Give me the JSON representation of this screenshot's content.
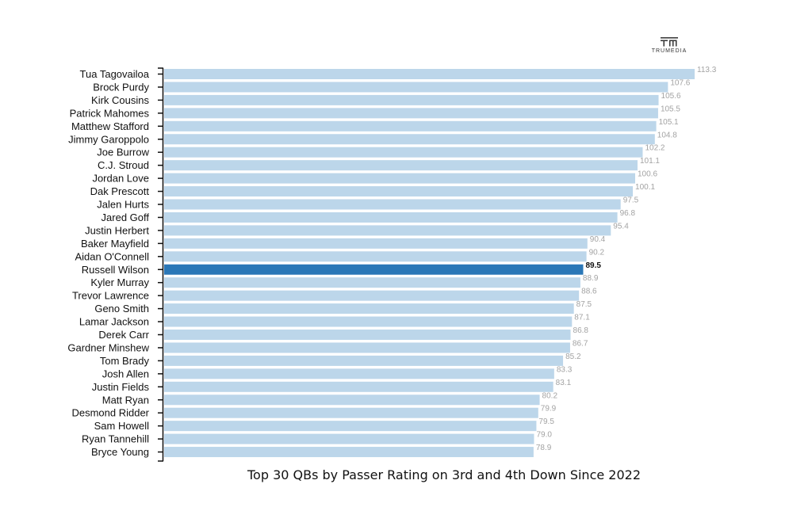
{
  "logo": {
    "text": "TRUMEDIA",
    "icon": "trumedia-logo-icon"
  },
  "colors": {
    "bar": "#bcd6ea",
    "highlight": "#2a77b7",
    "axis": "#111111"
  },
  "chart_data": {
    "type": "bar",
    "orientation": "horizontal",
    "title": "Top 30 QBs by Passer Rating on 3rd and 4th Down Since 2022",
    "highlight": "Russell Wilson",
    "categories": [
      "Tua Tagovailoa",
      "Brock Purdy",
      "Kirk Cousins",
      "Patrick Mahomes",
      "Matthew Stafford",
      "Jimmy Garoppolo",
      "Joe Burrow",
      "C.J. Stroud",
      "Jordan Love",
      "Dak Prescott",
      "Jalen Hurts",
      "Jared Goff",
      "Justin Herbert",
      "Baker Mayfield",
      "Aidan O'Connell",
      "Russell Wilson",
      "Kyler Murray",
      "Trevor Lawrence",
      "Geno Smith",
      "Lamar Jackson",
      "Derek Carr",
      "Gardner Minshew",
      "Tom Brady",
      "Josh Allen",
      "Justin Fields",
      "Matt Ryan",
      "Desmond Ridder",
      "Sam Howell",
      "Ryan Tannehill",
      "Bryce Young"
    ],
    "values": [
      113.3,
      107.6,
      105.6,
      105.5,
      105.1,
      104.8,
      102.2,
      101.1,
      100.6,
      100.1,
      97.5,
      96.8,
      95.4,
      90.4,
      90.2,
      89.5,
      88.9,
      88.6,
      87.5,
      87.1,
      86.8,
      86.7,
      85.2,
      83.3,
      83.1,
      80.2,
      79.9,
      79.5,
      79.0,
      78.9
    ],
    "value_labels": [
      "113.3",
      "107.6",
      "105.6",
      "105.5",
      "105.1",
      "104.8",
      "102.2",
      "101.1",
      "100.6",
      "100.1",
      "97.5",
      "96.8",
      "95.4",
      "90.4",
      "90.2",
      "89.5",
      "88.9",
      "88.6",
      "87.5",
      "87.1",
      "86.8",
      "86.7",
      "85.2",
      "83.3",
      "83.1",
      "80.2",
      "79.9",
      "79.5",
      "79.0",
      "78.9"
    ],
    "xlim": [
      0,
      113.3
    ],
    "grid": false,
    "legend": "none"
  }
}
